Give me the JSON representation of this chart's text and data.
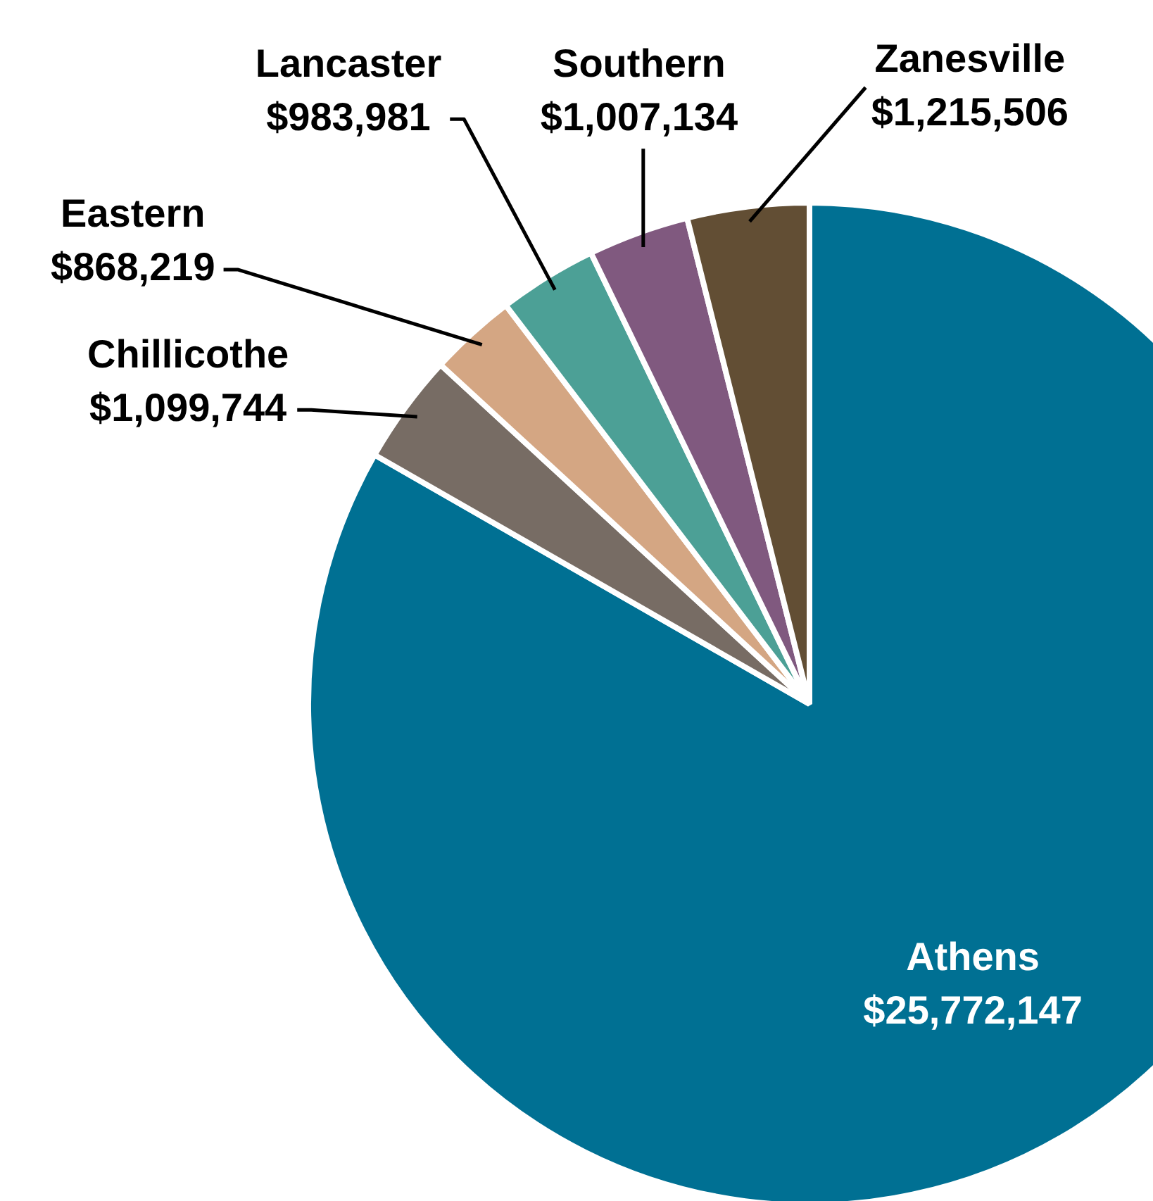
{
  "chart_data": {
    "type": "pie",
    "categories": [
      "Athens",
      "Chillicothe",
      "Eastern",
      "Lancaster",
      "Southern",
      "Zanesville"
    ],
    "values": [
      25772147,
      1099744,
      868219,
      983981,
      1007134,
      1215506
    ],
    "value_labels": [
      "$25,772,147",
      "$1,099,744",
      "$868,219",
      "$983,981",
      "$1,007,134",
      "$1,215,506"
    ],
    "colors": [
      "#007093",
      "#776c64",
      "#d4a683",
      "#4ca096",
      "#80597f",
      "#624e34"
    ],
    "legend": false
  }
}
